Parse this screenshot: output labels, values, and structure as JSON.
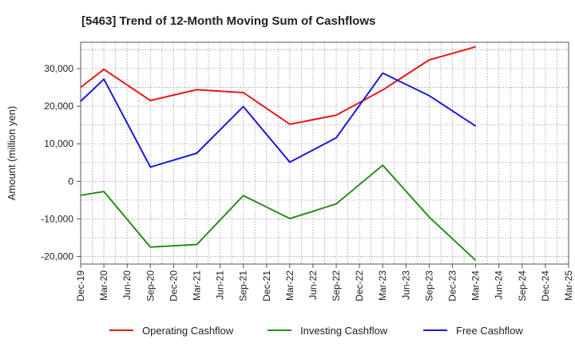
{
  "chart_data": {
    "type": "line",
    "title": "[5463]  Trend of 12-Month Moving Sum of Cashflows",
    "ylabel": "Amount (million yen)",
    "xlabel": "",
    "ylim": [
      -22000,
      37000
    ],
    "yticks": [
      -20000,
      -10000,
      0,
      10000,
      20000,
      30000
    ],
    "ytick_labels": [
      "-20,000",
      "-10,000",
      "0",
      "10,000",
      "20,000",
      "30,000"
    ],
    "categories": [
      "Dec-19",
      "Mar-20",
      "Jun-20",
      "Sep-20",
      "Dec-20",
      "Mar-21",
      "Jun-21",
      "Sep-21",
      "Dec-21",
      "Mar-22",
      "Jun-22",
      "Sep-22",
      "Dec-22",
      "Mar-23",
      "Jun-23",
      "Sep-23",
      "Dec-23",
      "Mar-24",
      "Jun-24",
      "Sep-24",
      "Dec-24",
      "Mar-25"
    ],
    "grid": true,
    "legend_position": "bottom",
    "series": [
      {
        "name": "Operating Cashflow",
        "color": "#e41a1c",
        "x": [
          "Dec-19",
          "Mar-20",
          "Sep-20",
          "Mar-21",
          "Sep-21",
          "Mar-22",
          "Sep-22",
          "Mar-23",
          "Sep-23",
          "Mar-24"
        ],
        "values": [
          25000,
          29800,
          21500,
          24400,
          23600,
          15200,
          17600,
          24300,
          32300,
          35800
        ]
      },
      {
        "name": "Investing Cashflow",
        "color": "#2e8b22",
        "x": [
          "Dec-19",
          "Mar-20",
          "Sep-20",
          "Mar-21",
          "Sep-21",
          "Mar-22",
          "Sep-22",
          "Mar-23",
          "Sep-23",
          "Mar-24"
        ],
        "values": [
          -3700,
          -2700,
          -17500,
          -16800,
          -3800,
          -9900,
          -6000,
          4300,
          -9500,
          -21000
        ]
      },
      {
        "name": "Free Cashflow",
        "color": "#1a1adc",
        "x": [
          "Dec-19",
          "Mar-20",
          "Sep-20",
          "Mar-21",
          "Sep-21",
          "Mar-22",
          "Sep-22",
          "Mar-23",
          "Sep-23",
          "Mar-24"
        ],
        "values": [
          21300,
          27200,
          3800,
          7500,
          19900,
          5100,
          11600,
          28800,
          22800,
          14700
        ]
      }
    ]
  }
}
